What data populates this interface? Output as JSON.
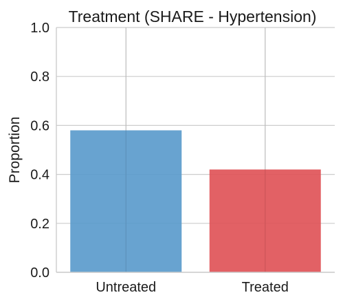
{
  "chart_data": {
    "type": "bar",
    "title": "Treatment (SHARE - Hypertension)",
    "xlabel": "",
    "ylabel": "Proportion",
    "categories": [
      "Untreated",
      "Treated"
    ],
    "values": [
      0.58,
      0.42
    ],
    "bar_colors": [
      "#5b9bcc",
      "#e05458"
    ],
    "ylim": [
      0.0,
      1.0
    ],
    "yticks": [
      "0.0",
      "0.2",
      "0.4",
      "0.6",
      "0.8",
      "1.0"
    ],
    "grid": true,
    "grid_color": "#cccccc",
    "legend": "none"
  }
}
